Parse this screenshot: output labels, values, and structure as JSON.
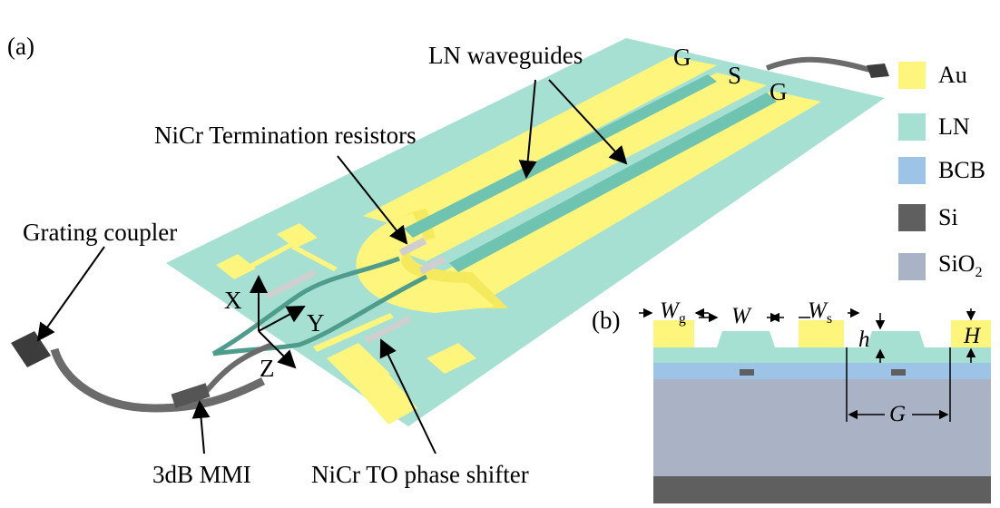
{
  "panels": {
    "a": "(a)",
    "b": "(b)"
  },
  "labels": {
    "ln_waveguides": "LN waveguides",
    "nicr_termination": "NiCr Termination resistors",
    "grating_coupler": "Grating coupler",
    "mmi": "3dB MMI",
    "phase_shifter": "NiCr TO phase shifter",
    "electrode_g1": "G",
    "electrode_s": "S",
    "electrode_g2": "G",
    "axis_x": "X",
    "axis_y": "Y",
    "axis_z": "Z"
  },
  "legend": [
    {
      "label": "Au",
      "color": "#fdf57c"
    },
    {
      "label": "LN",
      "color": "#a6e0d3"
    },
    {
      "label": "BCB",
      "color": "#9dc3e6"
    },
    {
      "label": "Si",
      "color": "#5f5f5f"
    },
    {
      "label": "SiO",
      "sub": "2",
      "color": "#aab3c6"
    }
  ],
  "cross_section": {
    "Wg": "W",
    "Wg_sub": "g",
    "W": "W",
    "Ws": "W",
    "Ws_sub": "s",
    "h": "h",
    "H": "H",
    "G": "G"
  },
  "colors": {
    "au": "#fdf57c",
    "ln": "#a6e0d3",
    "ln_dark": "#7cc9b9",
    "bcb": "#9dc3e6",
    "si": "#5f5f5f",
    "sio2": "#aab3c6",
    "nicr": "#cfcfcf",
    "fiber": "#6b6b6b"
  }
}
